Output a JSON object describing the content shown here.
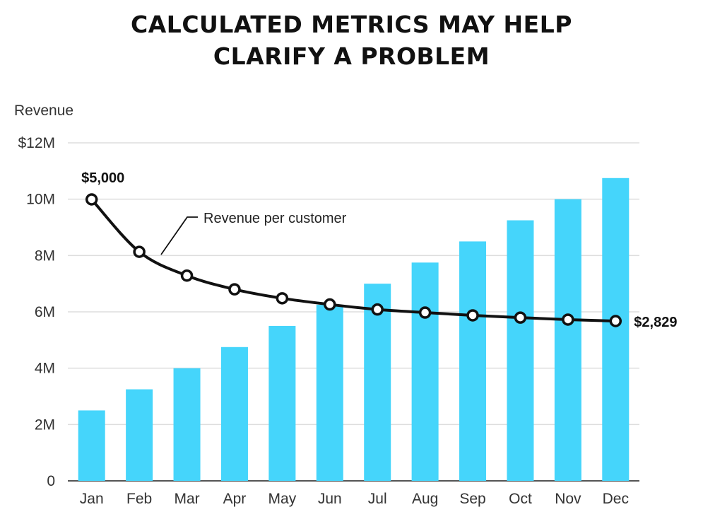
{
  "title_lines": [
    "CALCULATED METRICS MAY HELP",
    "CLARIFY A PROBLEM"
  ],
  "chart_data": {
    "type": "bar",
    "title": "CALCULATED METRICS MAY HELP CLARIFY A PROBLEM",
    "ylabel": "Revenue",
    "ylim": [
      0,
      12000000
    ],
    "y_ticks": [
      {
        "value": 0,
        "label": "0"
      },
      {
        "value": 2000000,
        "label": "2M"
      },
      {
        "value": 4000000,
        "label": "4M"
      },
      {
        "value": 6000000,
        "label": "6M"
      },
      {
        "value": 8000000,
        "label": "8M"
      },
      {
        "value": 10000000,
        "label": "10M"
      },
      {
        "value": 12000000,
        "label": "$12M"
      }
    ],
    "categories": [
      "Jan",
      "Feb",
      "Mar",
      "Apr",
      "May",
      "Jun",
      "Jul",
      "Aug",
      "Sep",
      "Oct",
      "Nov",
      "Dec"
    ],
    "grid": true,
    "bar_color": "#45d5fb",
    "line_color": "#111111",
    "series": [
      {
        "type": "bar",
        "values": [
          2500000,
          3250000,
          4000000,
          4750000,
          5500000,
          6250000,
          7000000,
          7750000,
          8500000,
          9250000,
          10000000,
          10750000
        ]
      },
      {
        "name": "Revenue per customer",
        "type": "line",
        "units": "$ per customer",
        "values": [
          5000,
          4065,
          3640,
          3395,
          3235,
          3125,
          3035,
          2980,
          2930,
          2890,
          2855,
          2829
        ]
      }
    ],
    "annotations": {
      "first_value_label": "$5,000",
      "last_value_label": "$2,829",
      "series_label": "Revenue per customer"
    }
  }
}
